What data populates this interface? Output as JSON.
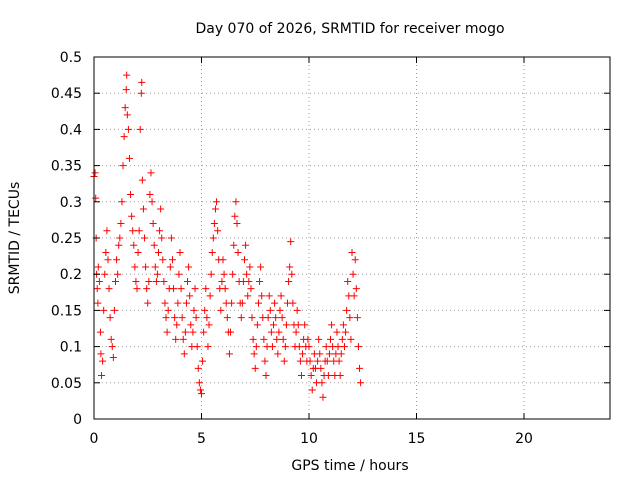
{
  "chart_data": {
    "type": "scatter",
    "title": "Day 070 of 2026, SRMTID for receiver mogo",
    "xlabel": "GPS time / hours",
    "ylabel": "SRMTID / TECUs",
    "xlim": [
      0,
      24
    ],
    "ylim": [
      0,
      0.5
    ],
    "grid": true,
    "marker": "+",
    "series_color": "#ff0000",
    "x_ticks": [
      0,
      5,
      10,
      15,
      20
    ],
    "x_tick_labels": [
      "0",
      "5",
      "10",
      "15",
      "20"
    ],
    "y_ticks": [
      0,
      0.05,
      0.1,
      0.15,
      0.2,
      0.25,
      0.3,
      0.35,
      0.4,
      0.45,
      0.5
    ],
    "y_tick_labels": [
      "0",
      "0.05",
      "0.1",
      "0.15",
      "0.2",
      "0.25",
      "0.3",
      "0.35",
      "0.4",
      "0.45",
      "0.5"
    ],
    "series": [
      {
        "name": "SRMTID",
        "points": [
          [
            0.0,
            0.335
          ],
          [
            0.05,
            0.34
          ],
          [
            0.08,
            0.305
          ],
          [
            0.1,
            0.25
          ],
          [
            0.12,
            0.2
          ],
          [
            0.15,
            0.18
          ],
          [
            0.18,
            0.16
          ],
          [
            0.2,
            0.21
          ],
          [
            0.25,
            0.19
          ],
          [
            0.3,
            0.12
          ],
          [
            0.32,
            0.09
          ],
          [
            0.35,
            0.06
          ],
          [
            0.4,
            0.08
          ],
          [
            0.45,
            0.15
          ],
          [
            0.5,
            0.2
          ],
          [
            0.55,
            0.23
          ],
          [
            0.6,
            0.26
          ],
          [
            0.65,
            0.22
          ],
          [
            0.7,
            0.18
          ],
          [
            0.75,
            0.14
          ],
          [
            0.8,
            0.11
          ],
          [
            0.85,
            0.1
          ],
          [
            0.9,
            0.085
          ],
          [
            0.95,
            0.15
          ],
          [
            1.0,
            0.19
          ],
          [
            1.05,
            0.22
          ],
          [
            1.1,
            0.2
          ],
          [
            1.15,
            0.24
          ],
          [
            1.2,
            0.25
          ],
          [
            1.25,
            0.27
          ],
          [
            1.3,
            0.3
          ],
          [
            1.35,
            0.35
          ],
          [
            1.4,
            0.39
          ],
          [
            1.45,
            0.43
          ],
          [
            1.5,
            0.455
          ],
          [
            1.52,
            0.475
          ],
          [
            1.55,
            0.42
          ],
          [
            1.6,
            0.4
          ],
          [
            1.65,
            0.36
          ],
          [
            1.7,
            0.31
          ],
          [
            1.75,
            0.28
          ],
          [
            1.8,
            0.26
          ],
          [
            1.85,
            0.24
          ],
          [
            1.9,
            0.21
          ],
          [
            1.95,
            0.19
          ],
          [
            2.0,
            0.18
          ],
          [
            2.05,
            0.23
          ],
          [
            2.1,
            0.26
          ],
          [
            2.15,
            0.4
          ],
          [
            2.2,
            0.45
          ],
          [
            2.22,
            0.465
          ],
          [
            2.25,
            0.33
          ],
          [
            2.3,
            0.29
          ],
          [
            2.35,
            0.25
          ],
          [
            2.4,
            0.21
          ],
          [
            2.45,
            0.18
          ],
          [
            2.5,
            0.16
          ],
          [
            2.55,
            0.19
          ],
          [
            2.6,
            0.31
          ],
          [
            2.65,
            0.34
          ],
          [
            2.7,
            0.3
          ],
          [
            2.75,
            0.27
          ],
          [
            2.8,
            0.24
          ],
          [
            2.85,
            0.21
          ],
          [
            2.9,
            0.19
          ],
          [
            2.95,
            0.2
          ],
          [
            3.0,
            0.23
          ],
          [
            3.05,
            0.26
          ],
          [
            3.1,
            0.29
          ],
          [
            3.15,
            0.25
          ],
          [
            3.2,
            0.22
          ],
          [
            3.25,
            0.19
          ],
          [
            3.3,
            0.16
          ],
          [
            3.35,
            0.14
          ],
          [
            3.4,
            0.12
          ],
          [
            3.45,
            0.15
          ],
          [
            3.5,
            0.18
          ],
          [
            3.55,
            0.21
          ],
          [
            3.6,
            0.25
          ],
          [
            3.65,
            0.22
          ],
          [
            3.7,
            0.18
          ],
          [
            3.75,
            0.14
          ],
          [
            3.8,
            0.11
          ],
          [
            3.85,
            0.13
          ],
          [
            3.9,
            0.16
          ],
          [
            3.95,
            0.2
          ],
          [
            4.0,
            0.23
          ],
          [
            4.05,
            0.18
          ],
          [
            4.1,
            0.14
          ],
          [
            4.15,
            0.11
          ],
          [
            4.2,
            0.09
          ],
          [
            4.25,
            0.12
          ],
          [
            4.3,
            0.16
          ],
          [
            4.35,
            0.19
          ],
          [
            4.4,
            0.21
          ],
          [
            4.45,
            0.17
          ],
          [
            4.5,
            0.13
          ],
          [
            4.55,
            0.1
          ],
          [
            4.6,
            0.12
          ],
          [
            4.65,
            0.15
          ],
          [
            4.7,
            0.18
          ],
          [
            4.75,
            0.14
          ],
          [
            4.8,
            0.1
          ],
          [
            4.85,
            0.07
          ],
          [
            4.9,
            0.05
          ],
          [
            4.95,
            0.04
          ],
          [
            5.0,
            0.035
          ],
          [
            5.05,
            0.08
          ],
          [
            5.1,
            0.12
          ],
          [
            5.15,
            0.15
          ],
          [
            5.2,
            0.18
          ],
          [
            5.25,
            0.14
          ],
          [
            5.3,
            0.1
          ],
          [
            5.35,
            0.13
          ],
          [
            5.4,
            0.17
          ],
          [
            5.45,
            0.2
          ],
          [
            5.5,
            0.23
          ],
          [
            5.55,
            0.25
          ],
          [
            5.6,
            0.27
          ],
          [
            5.65,
            0.29
          ],
          [
            5.7,
            0.3
          ],
          [
            5.75,
            0.26
          ],
          [
            5.8,
            0.22
          ],
          [
            5.85,
            0.18
          ],
          [
            5.9,
            0.15
          ],
          [
            5.95,
            0.19
          ],
          [
            6.0,
            0.22
          ],
          [
            6.05,
            0.2
          ],
          [
            6.1,
            0.18
          ],
          [
            6.15,
            0.16
          ],
          [
            6.2,
            0.14
          ],
          [
            6.25,
            0.12
          ],
          [
            6.3,
            0.09
          ],
          [
            6.35,
            0.12
          ],
          [
            6.4,
            0.16
          ],
          [
            6.45,
            0.2
          ],
          [
            6.5,
            0.24
          ],
          [
            6.55,
            0.28
          ],
          [
            6.6,
            0.3
          ],
          [
            6.65,
            0.27
          ],
          [
            6.7,
            0.23
          ],
          [
            6.75,
            0.19
          ],
          [
            6.8,
            0.16
          ],
          [
            6.85,
            0.14
          ],
          [
            6.9,
            0.16
          ],
          [
            6.95,
            0.19
          ],
          [
            7.0,
            0.22
          ],
          [
            7.05,
            0.24
          ],
          [
            7.1,
            0.2
          ],
          [
            7.15,
            0.17
          ],
          [
            7.2,
            0.19
          ],
          [
            7.25,
            0.21
          ],
          [
            7.3,
            0.18
          ],
          [
            7.35,
            0.14
          ],
          [
            7.4,
            0.11
          ],
          [
            7.45,
            0.09
          ],
          [
            7.5,
            0.07
          ],
          [
            7.55,
            0.1
          ],
          [
            7.6,
            0.13
          ],
          [
            7.65,
            0.16
          ],
          [
            7.7,
            0.19
          ],
          [
            7.75,
            0.21
          ],
          [
            7.8,
            0.17
          ],
          [
            7.85,
            0.14
          ],
          [
            7.9,
            0.11
          ],
          [
            7.95,
            0.08
          ],
          [
            8.0,
            0.06
          ],
          [
            8.05,
            0.1
          ],
          [
            8.1,
            0.14
          ],
          [
            8.15,
            0.17
          ],
          [
            8.2,
            0.15
          ],
          [
            8.25,
            0.12
          ],
          [
            8.3,
            0.1
          ],
          [
            8.35,
            0.13
          ],
          [
            8.4,
            0.16
          ],
          [
            8.45,
            0.14
          ],
          [
            8.5,
            0.11
          ],
          [
            8.55,
            0.09
          ],
          [
            8.6,
            0.12
          ],
          [
            8.65,
            0.15
          ],
          [
            8.7,
            0.17
          ],
          [
            8.75,
            0.14
          ],
          [
            8.8,
            0.11
          ],
          [
            8.85,
            0.08
          ],
          [
            8.9,
            0.1
          ],
          [
            8.95,
            0.13
          ],
          [
            9.0,
            0.16
          ],
          [
            9.05,
            0.19
          ],
          [
            9.1,
            0.21
          ],
          [
            9.15,
            0.245
          ],
          [
            9.2,
            0.2
          ],
          [
            9.25,
            0.16
          ],
          [
            9.3,
            0.13
          ],
          [
            9.35,
            0.1
          ],
          [
            9.4,
            0.12
          ],
          [
            9.45,
            0.15
          ],
          [
            9.5,
            0.13
          ],
          [
            9.55,
            0.1
          ],
          [
            9.6,
            0.08
          ],
          [
            9.65,
            0.06
          ],
          [
            9.7,
            0.09
          ],
          [
            9.75,
            0.11
          ],
          [
            9.8,
            0.13
          ],
          [
            9.85,
            0.1
          ],
          [
            9.9,
            0.08
          ],
          [
            9.95,
            0.11
          ],
          [
            10.0,
            0.1
          ],
          [
            10.05,
            0.08
          ],
          [
            10.1,
            0.06
          ],
          [
            10.15,
            0.04
          ],
          [
            10.2,
            0.07
          ],
          [
            10.25,
            0.09
          ],
          [
            10.3,
            0.07
          ],
          [
            10.35,
            0.05
          ],
          [
            10.4,
            0.08
          ],
          [
            10.45,
            0.11
          ],
          [
            10.5,
            0.09
          ],
          [
            10.55,
            0.07
          ],
          [
            10.6,
            0.05
          ],
          [
            10.65,
            0.03
          ],
          [
            10.7,
            0.06
          ],
          [
            10.75,
            0.08
          ],
          [
            10.8,
            0.1
          ],
          [
            10.85,
            0.08
          ],
          [
            10.9,
            0.06
          ],
          [
            10.95,
            0.09
          ],
          [
            11.0,
            0.11
          ],
          [
            11.05,
            0.13
          ],
          [
            11.1,
            0.1
          ],
          [
            11.15,
            0.08
          ],
          [
            11.2,
            0.06
          ],
          [
            11.25,
            0.09
          ],
          [
            11.3,
            0.12
          ],
          [
            11.35,
            0.1
          ],
          [
            11.4,
            0.08
          ],
          [
            11.45,
            0.06
          ],
          [
            11.5,
            0.09
          ],
          [
            11.55,
            0.11
          ],
          [
            11.6,
            0.13
          ],
          [
            11.65,
            0.1
          ],
          [
            11.7,
            0.12
          ],
          [
            11.75,
            0.15
          ],
          [
            11.8,
            0.19
          ],
          [
            11.85,
            0.17
          ],
          [
            11.9,
            0.14
          ],
          [
            11.95,
            0.11
          ],
          [
            12.0,
            0.23
          ],
          [
            12.05,
            0.2
          ],
          [
            12.1,
            0.17
          ],
          [
            12.15,
            0.22
          ],
          [
            12.2,
            0.18
          ],
          [
            12.25,
            0.14
          ],
          [
            12.3,
            0.1
          ],
          [
            12.35,
            0.07
          ],
          [
            12.4,
            0.05
          ]
        ]
      }
    ]
  }
}
